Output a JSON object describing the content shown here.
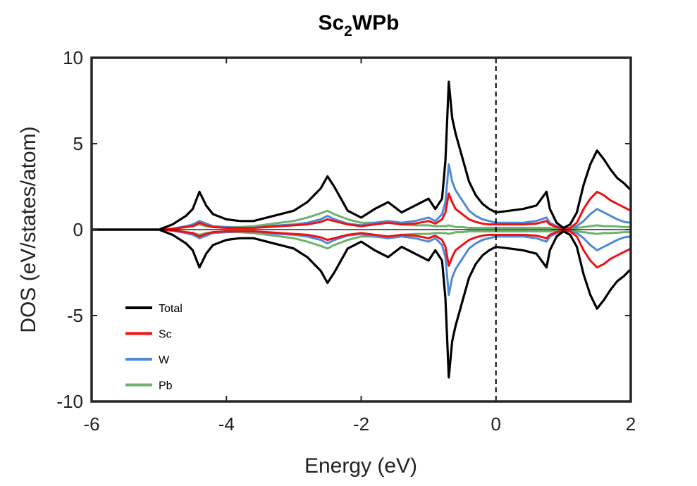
{
  "chart_data": {
    "type": "line",
    "title": "Sc",
    "title_subscript": "2",
    "title_suffix": "WPb",
    "xlabel": "Energy (eV)",
    "ylabel": "DOS (eV/states/atom)",
    "xlim": [
      -6,
      2
    ],
    "ylim": [
      -10,
      10
    ],
    "xticks": [
      -6,
      -4,
      -2,
      0,
      2
    ],
    "yticks": [
      -10,
      -5,
      0,
      5,
      10
    ],
    "xtick_labels": [
      "-6",
      "-4",
      "-2",
      "0",
      "2"
    ],
    "ytick_labels": [
      "-10",
      "-5",
      "0",
      "5",
      "10"
    ],
    "grid": false,
    "fermi_level": 0,
    "legend_position": "lower-left",
    "x": [
      -6.0,
      -5.0,
      -4.8,
      -4.6,
      -4.5,
      -4.4,
      -4.3,
      -4.2,
      -4.0,
      -3.8,
      -3.6,
      -3.4,
      -3.2,
      -3.0,
      -2.8,
      -2.6,
      -2.5,
      -2.4,
      -2.2,
      -2.0,
      -1.8,
      -1.6,
      -1.4,
      -1.2,
      -1.0,
      -0.9,
      -0.8,
      -0.75,
      -0.7,
      -0.65,
      -0.6,
      -0.5,
      -0.4,
      -0.3,
      -0.2,
      -0.1,
      0.0,
      0.2,
      0.4,
      0.6,
      0.75,
      0.8,
      0.9,
      1.0,
      1.1,
      1.2,
      1.3,
      1.4,
      1.5,
      1.6,
      1.7,
      1.8,
      1.9,
      2.0
    ],
    "series": [
      {
        "name": "Total",
        "color": "#000000",
        "values": [
          0,
          0,
          0.3,
          0.8,
          1.2,
          2.2,
          1.4,
          0.9,
          0.6,
          0.5,
          0.5,
          0.7,
          0.9,
          1.1,
          1.6,
          2.4,
          3.1,
          2.5,
          1.1,
          0.7,
          1.2,
          1.6,
          1.0,
          1.4,
          1.8,
          1.2,
          1.8,
          4.0,
          8.6,
          6.5,
          5.6,
          4.2,
          2.8,
          2.0,
          1.5,
          1.2,
          1.0,
          1.1,
          1.2,
          1.4,
          2.2,
          1.2,
          0.4,
          0.1,
          0.3,
          1.0,
          2.6,
          3.8,
          4.6,
          4.1,
          3.5,
          3.0,
          2.7,
          2.3
        ]
      },
      {
        "name": "Sc",
        "color": "#ee1111",
        "values": [
          0,
          0,
          0.05,
          0.15,
          0.2,
          0.4,
          0.25,
          0.15,
          0.1,
          0.1,
          0.1,
          0.15,
          0.2,
          0.25,
          0.3,
          0.45,
          0.6,
          0.5,
          0.3,
          0.2,
          0.3,
          0.4,
          0.3,
          0.35,
          0.5,
          0.35,
          0.6,
          1.0,
          2.1,
          1.6,
          1.2,
          0.9,
          0.6,
          0.45,
          0.35,
          0.3,
          0.3,
          0.3,
          0.3,
          0.35,
          0.5,
          0.3,
          0.15,
          0.05,
          0.1,
          0.4,
          1.2,
          1.8,
          2.2,
          2.0,
          1.7,
          1.5,
          1.3,
          1.1
        ]
      },
      {
        "name": "W",
        "color": "#4f8ad6",
        "values": [
          0,
          0,
          0.05,
          0.2,
          0.3,
          0.5,
          0.35,
          0.2,
          0.15,
          0.1,
          0.1,
          0.2,
          0.25,
          0.3,
          0.4,
          0.6,
          0.8,
          0.6,
          0.35,
          0.25,
          0.4,
          0.5,
          0.4,
          0.5,
          0.7,
          0.5,
          0.9,
          1.6,
          3.8,
          2.8,
          2.3,
          1.7,
          1.1,
          0.8,
          0.6,
          0.5,
          0.4,
          0.4,
          0.4,
          0.5,
          0.7,
          0.4,
          0.2,
          0.05,
          0.1,
          0.2,
          0.5,
          0.9,
          1.2,
          1.0,
          0.8,
          0.6,
          0.45,
          0.4
        ]
      },
      {
        "name": "Pb",
        "color": "#6db36d",
        "values": [
          0,
          0,
          0.05,
          0.15,
          0.2,
          0.3,
          0.2,
          0.15,
          0.15,
          0.15,
          0.2,
          0.3,
          0.4,
          0.5,
          0.7,
          0.95,
          1.1,
          0.9,
          0.6,
          0.4,
          0.4,
          0.45,
          0.3,
          0.25,
          0.25,
          0.2,
          0.2,
          0.2,
          0.25,
          0.2,
          0.15,
          0.15,
          0.1,
          0.1,
          0.1,
          0.1,
          0.1,
          0.1,
          0.1,
          0.1,
          0.1,
          0.1,
          0.05,
          0.02,
          0.05,
          0.1,
          0.15,
          0.2,
          0.25,
          0.2,
          0.2,
          0.18,
          0.15,
          0.15
        ]
      }
    ]
  }
}
